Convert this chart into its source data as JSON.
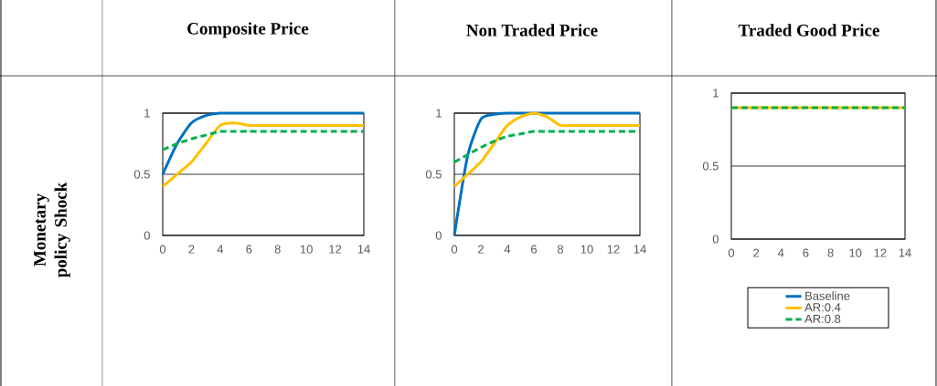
{
  "chart_data": [
    {
      "type": "line",
      "title": "Composite Price",
      "annotations": [
        "Monetary policy Shock"
      ],
      "x": [
        0,
        1,
        2,
        3,
        4,
        5,
        6,
        7,
        8,
        9,
        10,
        11,
        12,
        13,
        14
      ],
      "series": [
        {
          "color": "#0070c0",
          "line_style": "solid",
          "values": [
            0.5,
            0.75,
            0.92,
            0.98,
            1,
            1,
            1,
            1,
            1,
            1,
            1,
            1,
            1,
            1,
            1
          ]
        },
        {
          "color": "#ffc000",
          "line_style": "solid",
          "values": [
            0.4,
            0.5,
            0.6,
            0.75,
            0.9,
            0.92,
            0.9,
            0.9,
            0.9,
            0.9,
            0.9,
            0.9,
            0.9,
            0.9,
            0.9
          ]
        },
        {
          "color": "#00b050",
          "line_style": "dashed",
          "values": [
            0.7,
            0.75,
            0.79,
            0.82,
            0.85,
            0.85,
            0.85,
            0.85,
            0.85,
            0.85,
            0.85,
            0.85,
            0.85,
            0.85,
            0.85
          ]
        }
      ],
      "xlim": [
        0,
        14
      ],
      "ylim": [
        0,
        1
      ],
      "xticks": [
        0,
        2,
        4,
        6,
        8,
        10,
        12,
        14
      ],
      "yticks": [
        0,
        0.5,
        1
      ],
      "grid": "y",
      "legend": false
    },
    {
      "type": "line",
      "title": "Non Traded Price",
      "x": [
        0,
        1,
        2,
        3,
        4,
        5,
        6,
        7,
        8,
        9,
        10,
        11,
        12,
        13,
        14
      ],
      "series": [
        {
          "color": "#0070c0",
          "line_style": "solid",
          "values": [
            0,
            0.65,
            0.95,
            0.99,
            1,
            1,
            1,
            1,
            1,
            1,
            1,
            1,
            1,
            1,
            1
          ]
        },
        {
          "color": "#ffc000",
          "line_style": "solid",
          "values": [
            0.4,
            0.5,
            0.6,
            0.75,
            0.9,
            0.97,
            1,
            0.97,
            0.9,
            0.9,
            0.9,
            0.9,
            0.9,
            0.9,
            0.9
          ]
        },
        {
          "color": "#00b050",
          "line_style": "dashed",
          "values": [
            0.6,
            0.66,
            0.72,
            0.77,
            0.81,
            0.83,
            0.85,
            0.85,
            0.85,
            0.85,
            0.85,
            0.85,
            0.85,
            0.85,
            0.85
          ]
        }
      ],
      "xlim": [
        0,
        14
      ],
      "ylim": [
        0,
        1
      ],
      "xticks": [
        0,
        2,
        4,
        6,
        8,
        10,
        12,
        14
      ],
      "yticks": [
        0,
        0.5,
        1
      ],
      "grid": "y",
      "legend": false
    },
    {
      "type": "line",
      "title": "Traded Good Price",
      "x": [
        0,
        1,
        2,
        3,
        4,
        5,
        6,
        7,
        8,
        9,
        10,
        11,
        12,
        13,
        14
      ],
      "series": [
        {
          "name": "Baseline",
          "color": "#0070c0",
          "line_style": "solid",
          "values": [
            null,
            null,
            null,
            null,
            null,
            null,
            null,
            null,
            null,
            null,
            null,
            null,
            null,
            null,
            null
          ]
        },
        {
          "name": "AR:0.4",
          "color": "#ffc000",
          "line_style": "solid",
          "values": [
            0.9,
            0.9,
            0.9,
            0.9,
            0.9,
            0.9,
            0.9,
            0.9,
            0.9,
            0.9,
            0.9,
            0.9,
            0.9,
            0.9,
            0.9
          ]
        },
        {
          "name": "AR:0.8",
          "color": "#00b050",
          "line_style": "dashed",
          "values": [
            0.9,
            0.9,
            0.9,
            0.9,
            0.9,
            0.9,
            0.9,
            0.9,
            0.9,
            0.9,
            0.9,
            0.9,
            0.9,
            0.9,
            0.9
          ]
        }
      ],
      "xlim": [
        0,
        14
      ],
      "ylim": [
        0,
        1
      ],
      "xticks": [
        0,
        2,
        4,
        6,
        8,
        10,
        12,
        14
      ],
      "yticks": [
        0,
        0.5,
        1
      ],
      "grid": "y",
      "legend": "bottom"
    }
  ]
}
